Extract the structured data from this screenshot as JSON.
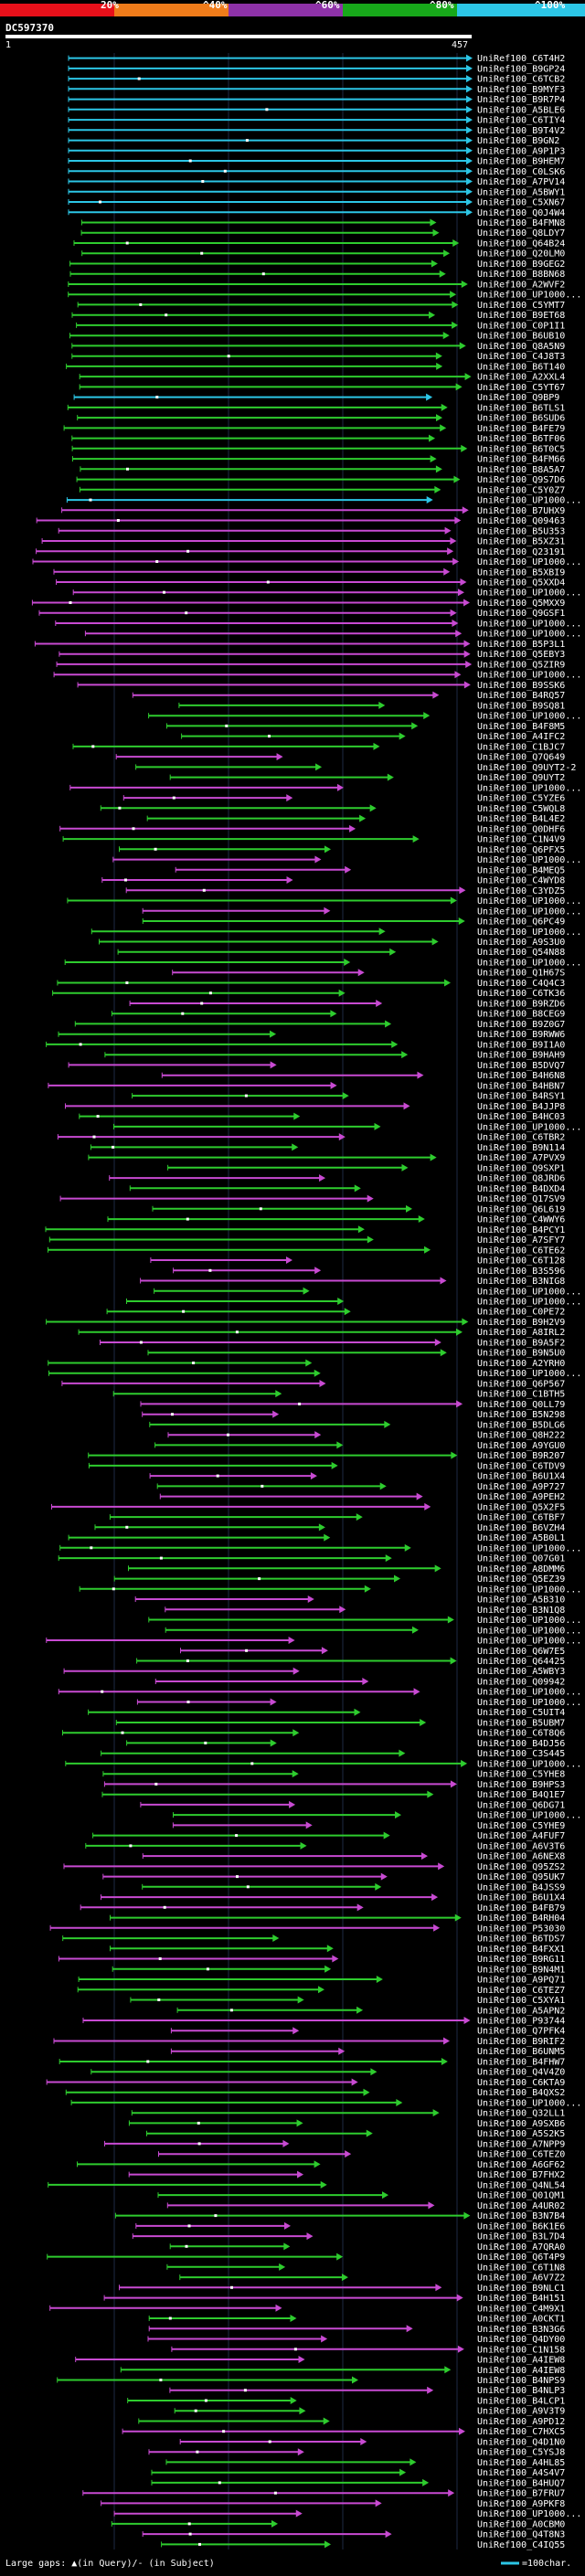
{
  "header": {
    "query_id": "DC597370",
    "start_label": "1",
    "end_label": "457"
  },
  "scale": {
    "ticks": [
      "20%",
      "^40%",
      "^60%",
      "^80%",
      "^100%"
    ],
    "colors": [
      "#e8101a",
      "#f07c1a",
      "#8e32a8",
      "#17a81a",
      "#2cc6e6"
    ]
  },
  "hits": [
    "UniRef100_C6T4H2",
    "UniRef100_B9GP24",
    "UniRef100_C6TCB2",
    "UniRef100_B9MYF3",
    "UniRef100_B9R7P4",
    "UniRef100_A5BLE6",
    "UniRef100_C6TIY4",
    "UniRef100_B9T4V2",
    "UniRef100_B9GN2",
    "UniRef100_A9P1P3",
    "UniRef100_B9HEM7",
    "UniRef100_C0LSK6",
    "UniRef100_A7PV14",
    "UniRef100_A5BWY1",
    "UniRef100_C5XN67",
    "UniRef100_Q0J4W4",
    "UniRef100_B4FMN8",
    "UniRef100_Q8LDY7",
    "UniRef100_Q64B24",
    "UniRef100_Q20LM0",
    "UniRef100_B9GEG2",
    "UniRef100_B8BN68",
    "UniRef100_A2WVF2",
    "UniRef100_UP1000...",
    "UniRef100_C5YMT7",
    "UniRef100_B9ET68",
    "UniRef100_C0P1I1",
    "UniRef100_B6UB10",
    "UniRef100_Q8A5N9",
    "UniRef100_C4J8T3",
    "UniRef100_B6T140",
    "UniRef100_A2XXL4",
    "UniRef100_C5YT67",
    "UniRef100_Q9BP9",
    "UniRef100_B6TLS1",
    "UniRef100_B6SUD6",
    "UniRef100_B4FE79",
    "UniRef100_B6TF06",
    "UniRef100_B6T0C5",
    "UniRef100_B4FM66",
    "UniRef100_B8A5A7",
    "UniRef100_Q9S7D6",
    "UniRef100_C5Y0Z7",
    "UniRef100_UP1000...",
    "UniRef100_B7UHX9",
    "UniRef100_Q09463",
    "UniRef100_B5U353",
    "UniRef100_B5XZ31",
    "UniRef100_Q23191",
    "UniRef100_UP1000...",
    "UniRef100_B5XBI9",
    "UniRef100_Q5XXD4",
    "UniRef100_UP1000...",
    "UniRef100_Q5MXX9",
    "UniRef100_Q9GSF1",
    "UniRef100_UP1000...",
    "UniRef100_UP1000...",
    "UniRef100_B5P3L1",
    "UniRef100_Q5EBY3",
    "UniRef100_Q5ZIR9",
    "UniRef100_UP1000...",
    "UniRef100_B9SSK6",
    "UniRef100_B4RQ57",
    "UniRef100_B9SQ81",
    "UniRef100_UP1000...",
    "UniRef100_B4F8M5",
    "UniRef100_A4IFC2",
    "UniRef100_C1BJC7",
    "UniRef100_Q7Q649",
    "UniRef100_Q9UYT2-2",
    "UniRef100_Q9UYT2",
    "UniRef100_UP1000...",
    "UniRef100_C5YZE6",
    "UniRef100_C5WQL8",
    "UniRef100_B4L4E2",
    "UniRef100_Q0DHF6",
    "UniRef100_C1N4V9",
    "UniRef100_Q6PFX5",
    "UniRef100_UP1000...",
    "UniRef100_B4MEQ5",
    "UniRef100_C4WYD8",
    "UniRef100_C3YDZ5",
    "UniRef100_UP1000...",
    "UniRef100_UP1000...",
    "UniRef100_Q6PC49",
    "UniRef100_UP1000...",
    "UniRef100_A9S3U0",
    "UniRef100_Q54N88",
    "UniRef100_UP1000...",
    "UniRef100_Q1H67S",
    "UniRef100_C4Q4C3",
    "UniRef100_C6TK36",
    "UniRef100_B9RZD6",
    "UniRef100_B8CEG9",
    "UniRef100_B9Z0G7",
    "UniRef100_B9RWW6",
    "UniRef100_B9I1A0",
    "UniRef100_B9HAH9",
    "UniRef100_B5DVQ7",
    "UniRef100_B4H6N8",
    "UniRef100_B4HBN7",
    "UniRef100_B4RSY1",
    "UniRef100_B4JJP8",
    "UniRef100_B4HC03",
    "UniRef100_UP1000...",
    "UniRef100_C6TBR2",
    "UniRef100_B9N114",
    "UniRef100_A7PVX9",
    "UniRef100_Q9SXP1",
    "UniRef100_Q8JRD6",
    "UniRef100_B4DXD4",
    "UniRef100_Q17SV9",
    "UniRef100_Q6L619",
    "UniRef100_C4WWY6",
    "UniRef100_B4PCY1",
    "UniRef100_A7SFY7",
    "UniRef100_C6TE62",
    "UniRef100_C6T128",
    "UniRef100_B3S596",
    "UniRef100_B3NIG8",
    "UniRef100_UP1000...",
    "UniRef100_UP1000...",
    "UniRef100_C0PE72",
    "UniRef100_B9H2V9",
    "UniRef100_A8IRL2",
    "UniRef100_B9A5F2",
    "UniRef100_B9N5U0",
    "UniRef100_A2YRH0",
    "UniRef100_UP1000...",
    "UniRef100_Q6P567",
    "UniRef100_C1BTH5",
    "UniRef100_Q0LL79",
    "UniRef100_B5N298",
    "UniRef100_B5DLG6",
    "UniRef100_Q8H222",
    "UniRef100_A9YGU0",
    "UniRef100_B9R207",
    "UniRef100_C6TDV9",
    "UniRef100_B6U1X4",
    "UniRef100_A9P727",
    "UniRef100_A9PEH2",
    "UniRef100_Q5X2F5",
    "UniRef100_C6TBF7",
    "UniRef100_B6VZH4",
    "UniRef100_A5B0L1",
    "UniRef100_UP1000...",
    "UniRef100_Q07G01",
    "UniRef100_A8DMM6",
    "UniRef100_Q5EZ39",
    "UniRef100_UP1000...",
    "UniRef100_A5B310",
    "UniRef100_B3N1Q8",
    "UniRef100_UP1000...",
    "UniRef100_UP1000...",
    "UniRef100_UP1000...",
    "UniRef100_Q6W7E5",
    "UniRef100_Q64425",
    "UniRef100_A5WBY3",
    "UniRef100_Q09942",
    "UniRef100_UP1000...",
    "UniRef100_UP1000...",
    "UniRef100_C5UIT4",
    "UniRef100_B5UBM7",
    "UniRef100_C6T8Q6",
    "UniRef100_B4DJ56",
    "UniRef100_C3S445",
    "UniRef100_UP1000...",
    "UniRef100_C5YHE8",
    "UniRef100_B9HPS3",
    "UniRef100_B4Q1E7",
    "UniRef100_Q6DG71",
    "UniRef100_UP1000...",
    "UniRef100_C5YHE9",
    "UniRef100_A4FUF7",
    "UniRef100_A6V3T6",
    "UniRef100_A6NEX8",
    "UniRef100_Q95ZS2",
    "UniRef100_Q95UK7",
    "UniRef100_B4JSS9",
    "UniRef100_B6U1X4",
    "UniRef100_B4FB79",
    "UniRef100_B4RH04",
    "UniRef100_P53030",
    "UniRef100_B6TDS7",
    "UniRef100_B4FXX1",
    "UniRef100_B9RG11",
    "UniRef100_B9N4M1",
    "UniRef100_A9PQ71",
    "UniRef100_C6TEZ7",
    "UniRef100_C5XYA1",
    "UniRef100_A5APN2",
    "UniRef100_P93744",
    "UniRef100_Q7PFK4",
    "UniRef100_B9RIF2",
    "UniRef100_B6UNM5",
    "UniRef100_B4FHW7",
    "UniRef100_Q4V4Z0",
    "UniRef100_C6KTA9",
    "UniRef100_B4QXS2",
    "UniRef100_UP1000...",
    "UniRef100_Q32LL1",
    "UniRef100_A9SXB6",
    "UniRef100_A5S2K5",
    "UniRef100_A7NPP9",
    "UniRef100_C6TEZ0",
    "UniRef100_A6GF62",
    "UniRef100_B7FHX2",
    "UniRef100_Q4NL54",
    "UniRef100_Q01QM1",
    "UniRef100_A4UR02",
    "UniRef100_B3N7B4",
    "UniRef100_B6K1E6",
    "UniRef100_B3L7D4",
    "UniRef100_A7QRA0",
    "UniRef100_Q6T4P9",
    "UniRef100_C6T1N8",
    "UniRef100_A6V7Z2",
    "UniRef100_B9NLC1",
    "UniRef100_B4H151",
    "UniRef100_C4M9X1",
    "UniRef100_A0CKT1",
    "UniRef100_B3N3G6",
    "UniRef100_Q4DY00",
    "UniRef100_C1N158",
    "UniRef100_A4IEW8",
    "UniRef100_A4IEW8",
    "UniRef100_B4NPS9",
    "UniRef100_B4NLP3",
    "UniRef100_B4LCP1",
    "UniRef100_A9V3T9",
    "UniRef100_A9PD12",
    "UniRef100_C7HXC5",
    "UniRef100_Q4D1N0",
    "UniRef100_C5YSJ8",
    "UniRef100_A4HL85",
    "UniRef100_A4S4V7",
    "UniRef100_B4HUQ7",
    "UniRef100_B7FRU7",
    "UniRef100_A9PKF8",
    "UniRef100_UP1000...",
    "UniRef100_A0CBM0",
    "UniRef100_Q4T8N3",
    "UniRef100_C4IQ55"
  ],
  "footer": {
    "text": "Large gaps: ▲(in Query)/- (in Subject)",
    "legend": "=100char."
  }
}
